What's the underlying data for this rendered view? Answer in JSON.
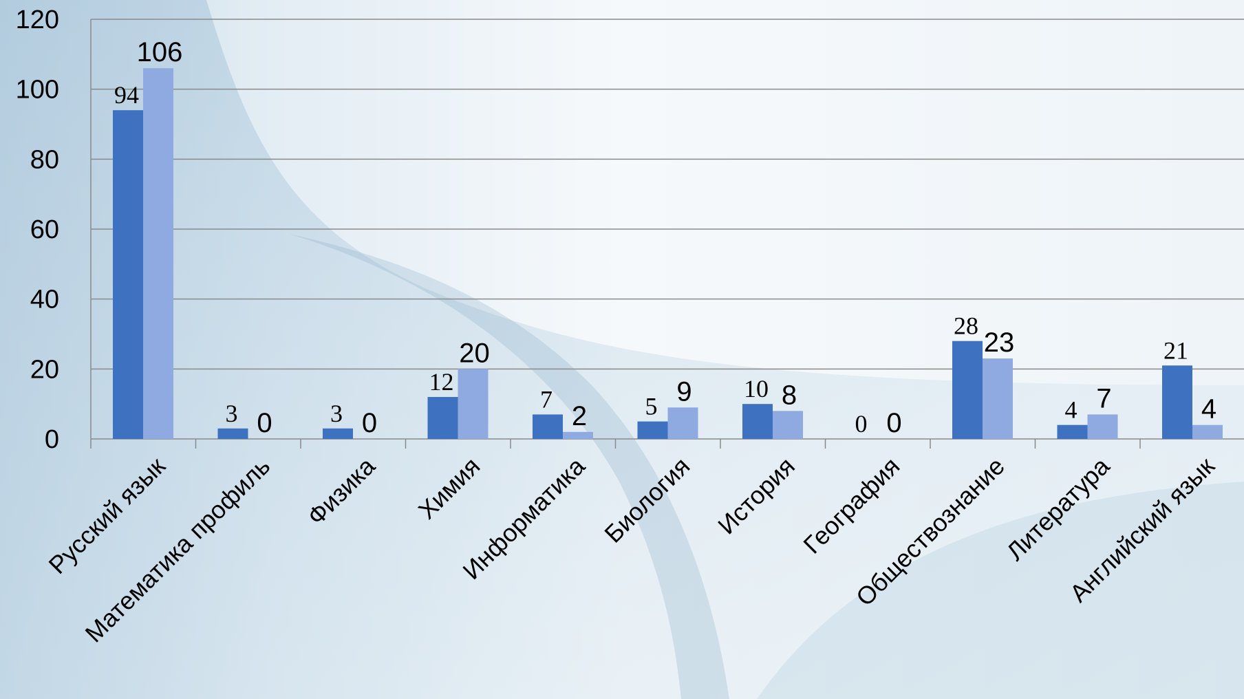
{
  "chart_data": {
    "type": "bar",
    "categories": [
      "Русский язык",
      "Математика  профиль",
      "Физика",
      "Химия",
      "Информатика",
      "Биология",
      "История",
      "География",
      "Обществознание",
      "Литература",
      "Английский язык"
    ],
    "series": [
      {
        "values": [
          94,
          3,
          3,
          12,
          7,
          5,
          10,
          0,
          28,
          4,
          21
        ],
        "color": "#3e72c0"
      },
      {
        "values": [
          106,
          0,
          0,
          20,
          2,
          9,
          8,
          0,
          23,
          7,
          4
        ],
        "color": "#8faae0"
      }
    ],
    "ylim": [
      0,
      120
    ],
    "yticks": [
      "0",
      "20",
      "40",
      "60",
      "80",
      "100",
      "120"
    ],
    "grid": true,
    "legend": "none"
  }
}
